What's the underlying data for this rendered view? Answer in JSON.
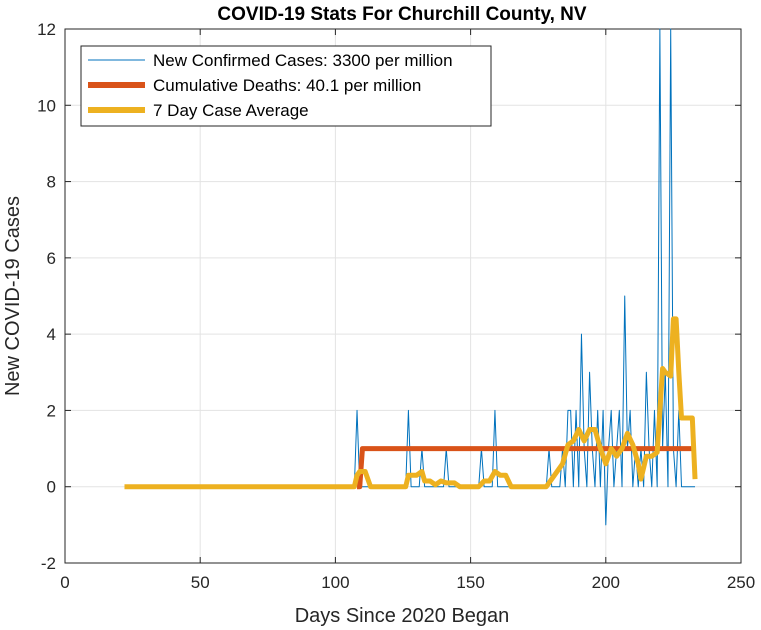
{
  "chart_data": {
    "type": "line",
    "title": "COVID-19 Stats For Churchill County, NV",
    "xlabel": "Days Since 2020 Began",
    "ylabel": "New COVID-19 Cases",
    "xlim": [
      0,
      250
    ],
    "ylim": [
      -2,
      12
    ],
    "xticks": [
      0,
      50,
      100,
      150,
      200,
      250
    ],
    "yticks": [
      -2,
      0,
      2,
      4,
      6,
      8,
      10,
      12
    ],
    "grid": true,
    "legend_position": "top-left",
    "series": [
      {
        "name": "New Confirmed Cases: 3300 per million",
        "color": "#0072BD",
        "line_width": "thin",
        "points": [
          [
            22,
            0
          ],
          [
            107,
            0
          ],
          [
            108,
            2
          ],
          [
            109,
            0
          ],
          [
            126,
            0
          ],
          [
            127,
            2
          ],
          [
            128,
            0
          ],
          [
            131,
            0
          ],
          [
            132,
            1
          ],
          [
            133,
            0
          ],
          [
            140,
            0
          ],
          [
            141,
            1
          ],
          [
            142,
            0
          ],
          [
            153,
            0
          ],
          [
            154,
            1
          ],
          [
            155,
            0
          ],
          [
            158,
            0
          ],
          [
            159,
            2
          ],
          [
            160,
            0
          ],
          [
            178,
            0
          ],
          [
            179,
            1
          ],
          [
            180,
            0
          ],
          [
            183,
            0
          ],
          [
            184,
            1
          ],
          [
            185,
            0
          ],
          [
            186,
            2
          ],
          [
            187,
            2
          ],
          [
            188,
            0
          ],
          [
            189,
            2
          ],
          [
            190,
            0
          ],
          [
            191,
            4
          ],
          [
            192,
            1
          ],
          [
            193,
            0
          ],
          [
            194,
            3
          ],
          [
            195,
            1
          ],
          [
            196,
            0
          ],
          [
            197,
            2
          ],
          [
            198,
            0
          ],
          [
            199,
            2
          ],
          [
            200,
            -1
          ],
          [
            201,
            1
          ],
          [
            202,
            2
          ],
          [
            203,
            0
          ],
          [
            204,
            1
          ],
          [
            205,
            2
          ],
          [
            206,
            0
          ],
          [
            207,
            5
          ],
          [
            208,
            1
          ],
          [
            209,
            2
          ],
          [
            210,
            0
          ],
          [
            211,
            1
          ],
          [
            212,
            0
          ],
          [
            213,
            1
          ],
          [
            214,
            0
          ],
          [
            215,
            3
          ],
          [
            216,
            1
          ],
          [
            217,
            0
          ],
          [
            218,
            2
          ],
          [
            219,
            0
          ],
          [
            220,
            12
          ],
          [
            221,
            1
          ],
          [
            222,
            3
          ],
          [
            223,
            0
          ],
          [
            224,
            12
          ],
          [
            225,
            1
          ],
          [
            226,
            0
          ],
          [
            227,
            2
          ],
          [
            228,
            0
          ],
          [
            233,
            0
          ]
        ]
      },
      {
        "name": "Cumulative Deaths: 40.1 per million",
        "color": "#D95319",
        "line_width": "thick",
        "points": [
          [
            108,
            0
          ],
          [
            109,
            0
          ],
          [
            110,
            1
          ],
          [
            232,
            1
          ]
        ]
      },
      {
        "name": "7 Day Case Average",
        "color": "#EDB120",
        "line_width": "thick",
        "points": [
          [
            22,
            0
          ],
          [
            107,
            0
          ],
          [
            108,
            0.3
          ],
          [
            109,
            0.4
          ],
          [
            111,
            0.4
          ],
          [
            113,
            0
          ],
          [
            126,
            0
          ],
          [
            127,
            0.3
          ],
          [
            130,
            0.3
          ],
          [
            132,
            0.4
          ],
          [
            133,
            0.15
          ],
          [
            135,
            0.15
          ],
          [
            137,
            0.05
          ],
          [
            139,
            0.15
          ],
          [
            141,
            0.1
          ],
          [
            144,
            0.1
          ],
          [
            146,
            0
          ],
          [
            153,
            0
          ],
          [
            155,
            0.15
          ],
          [
            157,
            0.15
          ],
          [
            159,
            0.4
          ],
          [
            161,
            0.3
          ],
          [
            163,
            0.3
          ],
          [
            165,
            0
          ],
          [
            178,
            0
          ],
          [
            181,
            0.3
          ],
          [
            184,
            0.6
          ],
          [
            186,
            1.1
          ],
          [
            188,
            1.2
          ],
          [
            190,
            1.5
          ],
          [
            192,
            1.2
          ],
          [
            194,
            1.5
          ],
          [
            196,
            1.5
          ],
          [
            198,
            1.0
          ],
          [
            200,
            0.6
          ],
          [
            202,
            1.0
          ],
          [
            204,
            0.8
          ],
          [
            206,
            1.0
          ],
          [
            208,
            1.4
          ],
          [
            210,
            1.1
          ],
          [
            212,
            0.6
          ],
          [
            213,
            0.2
          ],
          [
            215,
            0.8
          ],
          [
            217,
            0.8
          ],
          [
            219,
            0.9
          ],
          [
            220,
            2.0
          ],
          [
            221,
            3.1
          ],
          [
            222,
            3.0
          ],
          [
            224,
            2.9
          ],
          [
            225,
            4.4
          ],
          [
            226,
            4.4
          ],
          [
            227,
            3.0
          ],
          [
            228,
            1.8
          ],
          [
            231,
            1.8
          ],
          [
            232,
            1.8
          ],
          [
            233,
            0.2
          ]
        ]
      }
    ]
  }
}
